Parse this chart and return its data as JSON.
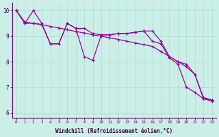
{
  "xlabel": "Windchill (Refroidissement éolien,°C)",
  "background_color": "#cceee8",
  "grid_color": "#aaddcc",
  "line_color": "#990099",
  "xlim_min": -0.5,
  "xlim_max": 23.5,
  "ylim_min": 5.8,
  "ylim_max": 10.3,
  "xticks": [
    0,
    1,
    2,
    3,
    4,
    5,
    6,
    7,
    8,
    9,
    10,
    11,
    12,
    13,
    14,
    15,
    16,
    17,
    18,
    19,
    20,
    21,
    22,
    23
  ],
  "yticks": [
    6,
    7,
    8,
    9,
    10
  ],
  "line1_x": [
    0,
    1,
    2,
    3,
    4,
    5,
    6,
    7,
    8,
    9,
    10,
    11,
    12,
    13,
    14,
    15,
    16,
    17,
    18,
    19,
    20,
    21,
    22,
    23
  ],
  "line1_y": [
    10.0,
    9.55,
    9.5,
    9.45,
    9.38,
    9.32,
    9.25,
    9.18,
    9.12,
    9.05,
    9.0,
    8.93,
    8.87,
    8.8,
    8.73,
    8.67,
    8.6,
    8.4,
    8.2,
    8.0,
    7.8,
    7.5,
    6.55,
    6.5
  ],
  "line2_x": [
    0,
    1,
    2,
    3,
    4,
    5,
    6,
    7,
    8,
    9,
    10,
    11,
    12,
    13,
    14,
    15,
    16,
    17,
    18,
    19,
    20,
    21,
    22,
    23
  ],
  "line2_y": [
    10.0,
    9.5,
    9.5,
    9.45,
    8.7,
    8.7,
    9.5,
    9.3,
    9.3,
    9.1,
    9.05,
    9.05,
    9.1,
    9.1,
    9.15,
    9.2,
    9.2,
    8.8,
    8.2,
    8.0,
    7.9,
    7.5,
    6.6,
    6.5
  ],
  "line3_x": [
    0,
    1,
    2,
    3,
    4,
    5,
    6,
    7,
    8,
    9,
    10,
    11,
    12,
    13,
    14,
    15,
    16,
    17,
    18,
    19,
    20,
    21,
    22,
    23
  ],
  "line3_y": [
    10.0,
    9.5,
    10.0,
    9.5,
    8.7,
    8.7,
    9.5,
    9.3,
    8.2,
    8.05,
    9.05,
    9.05,
    9.1,
    9.1,
    9.15,
    9.2,
    8.8,
    8.7,
    8.15,
    7.9,
    7.0,
    6.8,
    6.55,
    6.45
  ]
}
